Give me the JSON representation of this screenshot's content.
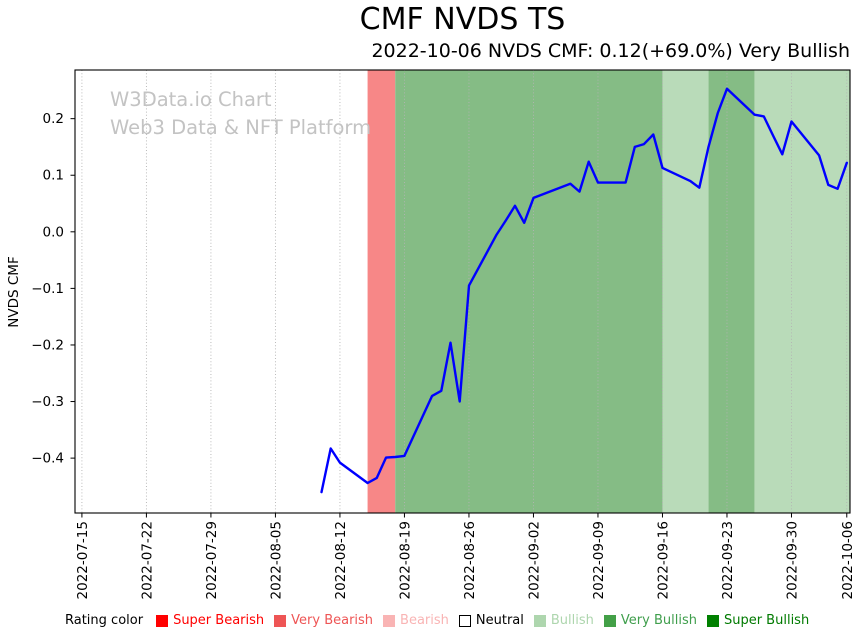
{
  "watermark": {
    "line1": "W3Data.io Chart",
    "line2": "Web3 Data & NFT Platform"
  },
  "legend": {
    "label": "Rating color",
    "items": [
      {
        "label": "Super Bearish",
        "color": "#ff0000",
        "text_color": "#ff0000",
        "border": false
      },
      {
        "label": "Very Bearish",
        "color": "#ee5555",
        "text_color": "#ee5555",
        "border": false
      },
      {
        "label": "Bearish",
        "color": "#f9b4b4",
        "text_color": "#f9b4b4",
        "border": false
      },
      {
        "label": "Neutral",
        "color": "#ffffff",
        "text_color": "#000000",
        "border": true
      },
      {
        "label": "Bullish",
        "color": "#aed6ae",
        "text_color": "#aed6ae",
        "border": false
      },
      {
        "label": "Very Bullish",
        "color": "#43a047",
        "text_color": "#3f9e4c",
        "border": false
      },
      {
        "label": "Super Bullish",
        "color": "#008000",
        "text_color": "#007a00",
        "border": false
      }
    ]
  },
  "chart_data": {
    "type": "line",
    "title": "CMF NVDS TS",
    "subtitle": "2022-10-06 NVDS CMF: 0.12(+69.0%) Very Bullish",
    "ylabel": "NVDS CMF",
    "grid": "vertical-dotted",
    "grid_color": "#b3b3b3",
    "ylim": [
      -0.497,
      0.286
    ],
    "x_epoch": "2022-07-15",
    "x_domain_days": [
      -0.75,
      83.35
    ],
    "y_ticks": [
      {
        "v": 0.2,
        "label": "0.2"
      },
      {
        "v": 0.1,
        "label": "0.1"
      },
      {
        "v": 0.0,
        "label": "0.0"
      },
      {
        "v": -0.1,
        "label": "−0.1"
      },
      {
        "v": -0.2,
        "label": "−0.2"
      },
      {
        "v": -0.3,
        "label": "−0.3"
      },
      {
        "v": -0.4,
        "label": "−0.4"
      }
    ],
    "x_ticks": [
      "2022-07-15",
      "2022-07-22",
      "2022-07-29",
      "2022-08-05",
      "2022-08-12",
      "2022-08-19",
      "2022-08-26",
      "2022-09-02",
      "2022-09-09",
      "2022-09-16",
      "2022-09-23",
      "2022-09-30",
      "2022-10-06"
    ],
    "rating_bands": [
      {
        "rating": "Very Bearish",
        "color": "#f78787",
        "start": "2022-08-15",
        "end": "2022-08-18"
      },
      {
        "rating": "Very Bullish",
        "color": "#85bc85",
        "start": "2022-08-18",
        "end": "2022-09-16"
      },
      {
        "rating": "Bullish",
        "color": "#b9dbb9",
        "start": "2022-09-16",
        "end": "2022-09-21"
      },
      {
        "rating": "Very Bullish",
        "color": "#85bc85",
        "start": "2022-09-21",
        "end": "2022-09-26"
      },
      {
        "rating": "Bullish",
        "color": "#b9dbb9",
        "start": "2022-09-26",
        "end": "2022-10-07"
      }
    ],
    "series": [
      {
        "name": "NVDS CMF",
        "color": "#0000ff",
        "points": [
          [
            "2022-08-10",
            -0.46
          ],
          [
            "2022-08-11",
            -0.383
          ],
          [
            "2022-08-12",
            -0.408
          ],
          [
            "2022-08-15",
            -0.444
          ],
          [
            "2022-08-16",
            -0.435
          ],
          [
            "2022-08-17",
            -0.399
          ],
          [
            "2022-08-18",
            -0.398
          ],
          [
            "2022-08-19",
            -0.396
          ],
          [
            "2022-08-22",
            -0.29
          ],
          [
            "2022-08-23",
            -0.281
          ],
          [
            "2022-08-24",
            -0.196
          ],
          [
            "2022-08-25",
            -0.3
          ],
          [
            "2022-08-26",
            -0.095
          ],
          [
            "2022-08-29",
            -0.005
          ],
          [
            "2022-08-30",
            0.02
          ],
          [
            "2022-08-31",
            0.046
          ],
          [
            "2022-09-01",
            0.016
          ],
          [
            "2022-09-02",
            0.06
          ],
          [
            "2022-09-06",
            0.085
          ],
          [
            "2022-09-07",
            0.071
          ],
          [
            "2022-09-08",
            0.124
          ],
          [
            "2022-09-09",
            0.087
          ],
          [
            "2022-09-12",
            0.087
          ],
          [
            "2022-09-13",
            0.15
          ],
          [
            "2022-09-14",
            0.155
          ],
          [
            "2022-09-15",
            0.172
          ],
          [
            "2022-09-16",
            0.113
          ],
          [
            "2022-09-19",
            0.09
          ],
          [
            "2022-09-20",
            0.078
          ],
          [
            "2022-09-21",
            0.15
          ],
          [
            "2022-09-22",
            0.21
          ],
          [
            "2022-09-23",
            0.253
          ],
          [
            "2022-09-26",
            0.207
          ],
          [
            "2022-09-27",
            0.204
          ],
          [
            "2022-09-28",
            0.17
          ],
          [
            "2022-09-29",
            0.137
          ],
          [
            "2022-09-30",
            0.195
          ],
          [
            "2022-10-03",
            0.135
          ],
          [
            "2022-10-04",
            0.083
          ],
          [
            "2022-10-05",
            0.076
          ],
          [
            "2022-10-06",
            0.122
          ]
        ]
      }
    ]
  }
}
